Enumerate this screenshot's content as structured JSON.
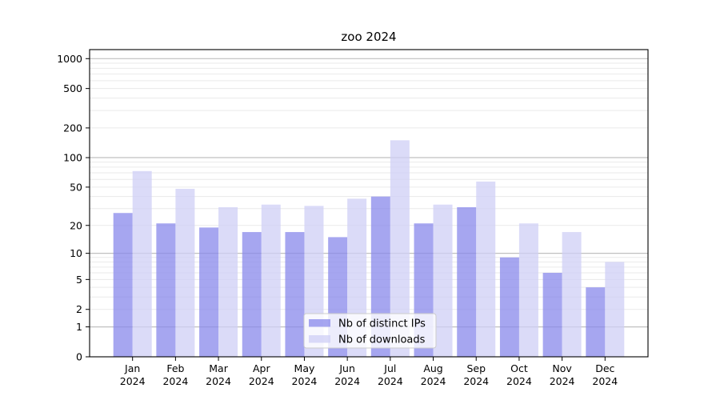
{
  "figure": {
    "background": "#ffffff"
  },
  "chart_data": {
    "type": "bar",
    "title": "zoo 2024",
    "categories": [
      "Jan",
      "Feb",
      "Mar",
      "Apr",
      "May",
      "Jun",
      "Jul",
      "Aug",
      "Sep",
      "Oct",
      "Nov",
      "Dec"
    ],
    "category_year": "2024",
    "series": [
      {
        "name": "Nb of distinct IPs",
        "key": "distinct-ips",
        "color": "#8888eb",
        "values": [
          27,
          21,
          19,
          17,
          17,
          15,
          40,
          21,
          31,
          9,
          6,
          4
        ]
      },
      {
        "name": "Nb of downloads",
        "key": "downloads",
        "color": "#cfcff6",
        "values": [
          73,
          48,
          31,
          33,
          32,
          38,
          150,
          33,
          57,
          21,
          17,
          8
        ]
      }
    ],
    "xlabel": "",
    "ylabel": "",
    "y_scale": "log1p",
    "ylim": [
      0,
      1000
    ],
    "y_ticks": [
      0,
      1,
      2,
      5,
      10,
      20,
      50,
      100,
      200,
      500,
      1000
    ],
    "y_major_gridlines": [
      1,
      10,
      100,
      1000
    ],
    "grid": "on",
    "legend_position": "lower-center",
    "bar_opacity": 0.75,
    "colors": {
      "major_grid": "#c0c0c0",
      "minor_grid": "#eaeaea",
      "axis": "#000000",
      "legend_border": "#cccccc",
      "legend_bg": "#ffffff"
    }
  }
}
